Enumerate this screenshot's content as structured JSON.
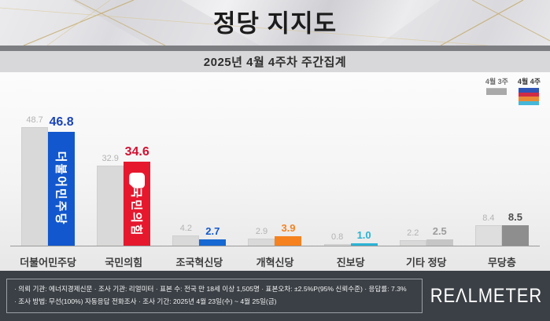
{
  "header": {
    "title": "정당 지지도",
    "subtitle": "2025년 4월 4주차 주간집계"
  },
  "legend": {
    "prev_label": "4월 3주",
    "curr_label": "4월 4주",
    "prev_color": "#a9a9a9",
    "curr_stripe_colors": [
      "#2f55b5",
      "#cf2b45",
      "#e88a35",
      "#45b7d8"
    ]
  },
  "chart_data": {
    "type": "bar",
    "title": "정당 지지도",
    "subtitle": "2025년 4월 4주차 주간집계",
    "categories": [
      "더불어민주당",
      "국민의힘",
      "조국혁신당",
      "개혁신당",
      "진보당",
      "기타 정당",
      "무당층"
    ],
    "series": [
      {
        "name": "4월 3주",
        "values": [
          48.7,
          32.9,
          4.2,
          2.9,
          0.8,
          2.2,
          8.4
        ]
      },
      {
        "name": "4월 4주",
        "values": [
          46.8,
          34.6,
          2.7,
          3.9,
          1.0,
          2.5,
          8.5
        ]
      }
    ],
    "unit": "%",
    "ylim": [
      0,
      50
    ],
    "grid": false,
    "legend_position": "top-right",
    "prev_bar_colors": [
      "#d9d9d9",
      "#d9d9d9",
      "#d9d9d9",
      "#d9d9d9",
      "#d9d9d9",
      "#d9d9d9",
      "#dedede"
    ],
    "curr_bar_colors": [
      "#1257cd",
      "#e5182e",
      "#1668d2",
      "#f5821f",
      "#2ab3d4",
      "#c6c6c6",
      "#8e8e8e"
    ],
    "prev_label_color": "#b3b3b3",
    "curr_label_colors": [
      "#1a44b8",
      "#d31030",
      "#1257cd",
      "#f5821f",
      "#2ab3d4",
      "#9c9c9c",
      "#4d4d4d"
    ],
    "bar_logos": [
      {
        "index": 0,
        "text": "더불어민주당",
        "shape": false
      },
      {
        "index": 1,
        "text": "국민의힘",
        "shape": true
      }
    ]
  },
  "footer": {
    "line1": "· 의뢰 기관: 에너지경제신문   · 조사 기관: 리얼미터  · 표본 수: 전국 만 18세 이상 1,505명  · 표본오차: ±2.5%P(95% 신뢰수준)  · 응답률: 7.3%",
    "line2": "· 조사 방법: 무선(100%) 자동응답 전화조사  · 조사 기간: 2025년 4월 23일(수) ~ 4월 25일(금)",
    "logo": "REΛLMETER"
  }
}
